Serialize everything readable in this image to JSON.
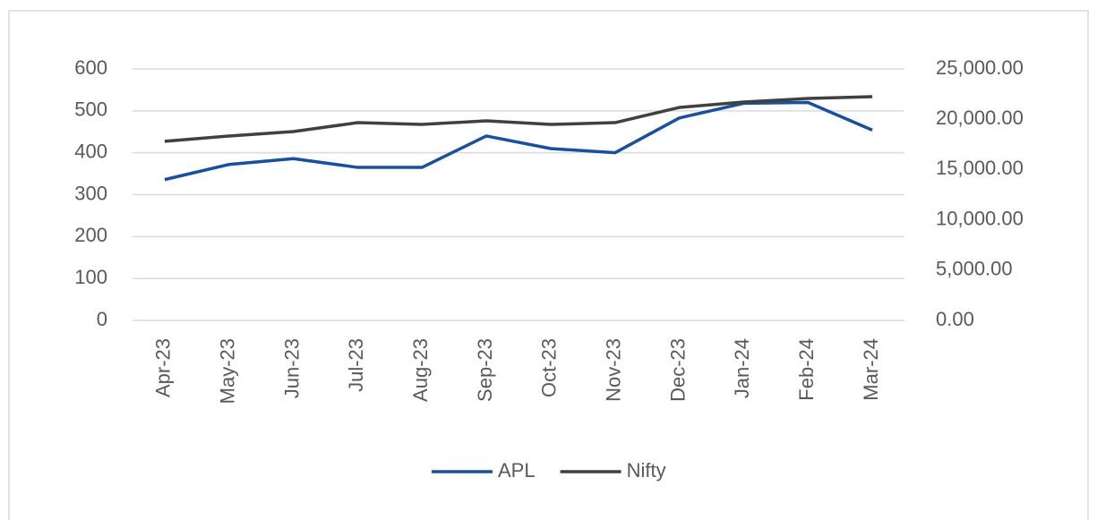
{
  "chart_data": {
    "type": "line",
    "categories": [
      "Apr-23",
      "May-23",
      "Jun-23",
      "Jul-23",
      "Aug-23",
      "Sep-23",
      "Oct-23",
      "Nov-23",
      "Dec-23",
      "Jan-24",
      "Feb-24",
      "Mar-24"
    ],
    "series": [
      {
        "name": "APL",
        "color": "#1a4f9c",
        "values": [
          336,
          372,
          386,
          365,
          365,
          440,
          410,
          400,
          483,
          518,
          520,
          454
        ]
      },
      {
        "name": "Nifty",
        "color": "#404040",
        "axis": "y2",
        "values": [
          17800,
          18330,
          18770,
          19660,
          19480,
          19840,
          19480,
          19660,
          21170,
          21710,
          22060,
          22240
        ]
      }
    ],
    "ylim": [
      0,
      600
    ],
    "yticks": [
      0,
      100,
      200,
      300,
      400,
      500,
      600
    ],
    "y2lim": [
      0,
      25000
    ],
    "y2ticks": [
      {
        "value": 0,
        "label": "0.00"
      },
      {
        "value": 5000,
        "label": "5,000.00"
      },
      {
        "value": 10000,
        "label": "10,000.00"
      },
      {
        "value": 15000,
        "label": "15,000.00"
      },
      {
        "value": 20000,
        "label": "20,000.00"
      },
      {
        "value": 25000,
        "label": "25,000.00"
      }
    ],
    "grid": true,
    "legend": "bottom"
  }
}
